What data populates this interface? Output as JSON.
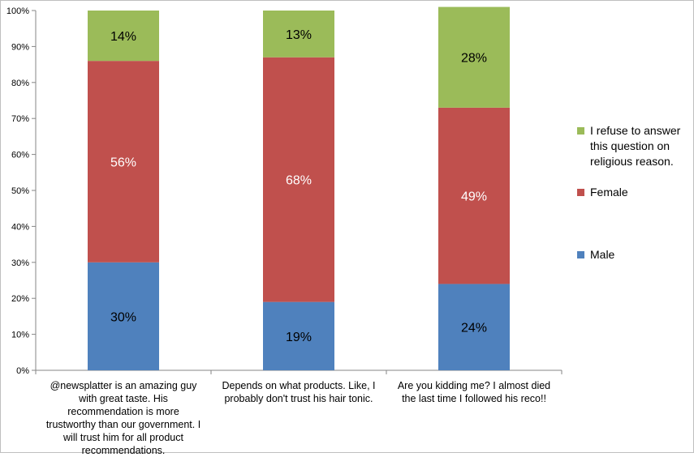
{
  "chart_data": {
    "type": "bar",
    "stacked": true,
    "normalized": true,
    "title": "",
    "xlabel": "",
    "ylabel": "",
    "ylim": [
      0,
      100
    ],
    "y_ticks": [
      "0%",
      "10%",
      "20%",
      "30%",
      "40%",
      "50%",
      "60%",
      "70%",
      "80%",
      "90%",
      "100%"
    ],
    "grid": false,
    "legend_position": "right",
    "categories": [
      "@newsplatter is an amazing guy with great taste. His recommendation is more trustworthy than our government. I will trust him for all product recommendations.",
      "Depends on what products. Like, I probably don't trust his hair tonic.",
      "Are you kidding me? I almost died the last time I followed his reco!!"
    ],
    "series": [
      {
        "name": "Male",
        "color": "#4F81BD",
        "label_color": "#000000",
        "values": [
          30,
          19,
          24
        ],
        "labels": [
          "30%",
          "19%",
          "24%"
        ]
      },
      {
        "name": "Female",
        "color": "#C0504D",
        "label_color": "#ffffff",
        "values": [
          56,
          68,
          49
        ],
        "labels": [
          "56%",
          "68%",
          "49%"
        ]
      },
      {
        "name": "I refuse to answer this question on religious reason.",
        "color": "#9BBB59",
        "label_color": "#000000",
        "values": [
          14,
          13,
          28
        ],
        "labels": [
          "14%",
          "13%",
          "28%"
        ]
      }
    ]
  }
}
